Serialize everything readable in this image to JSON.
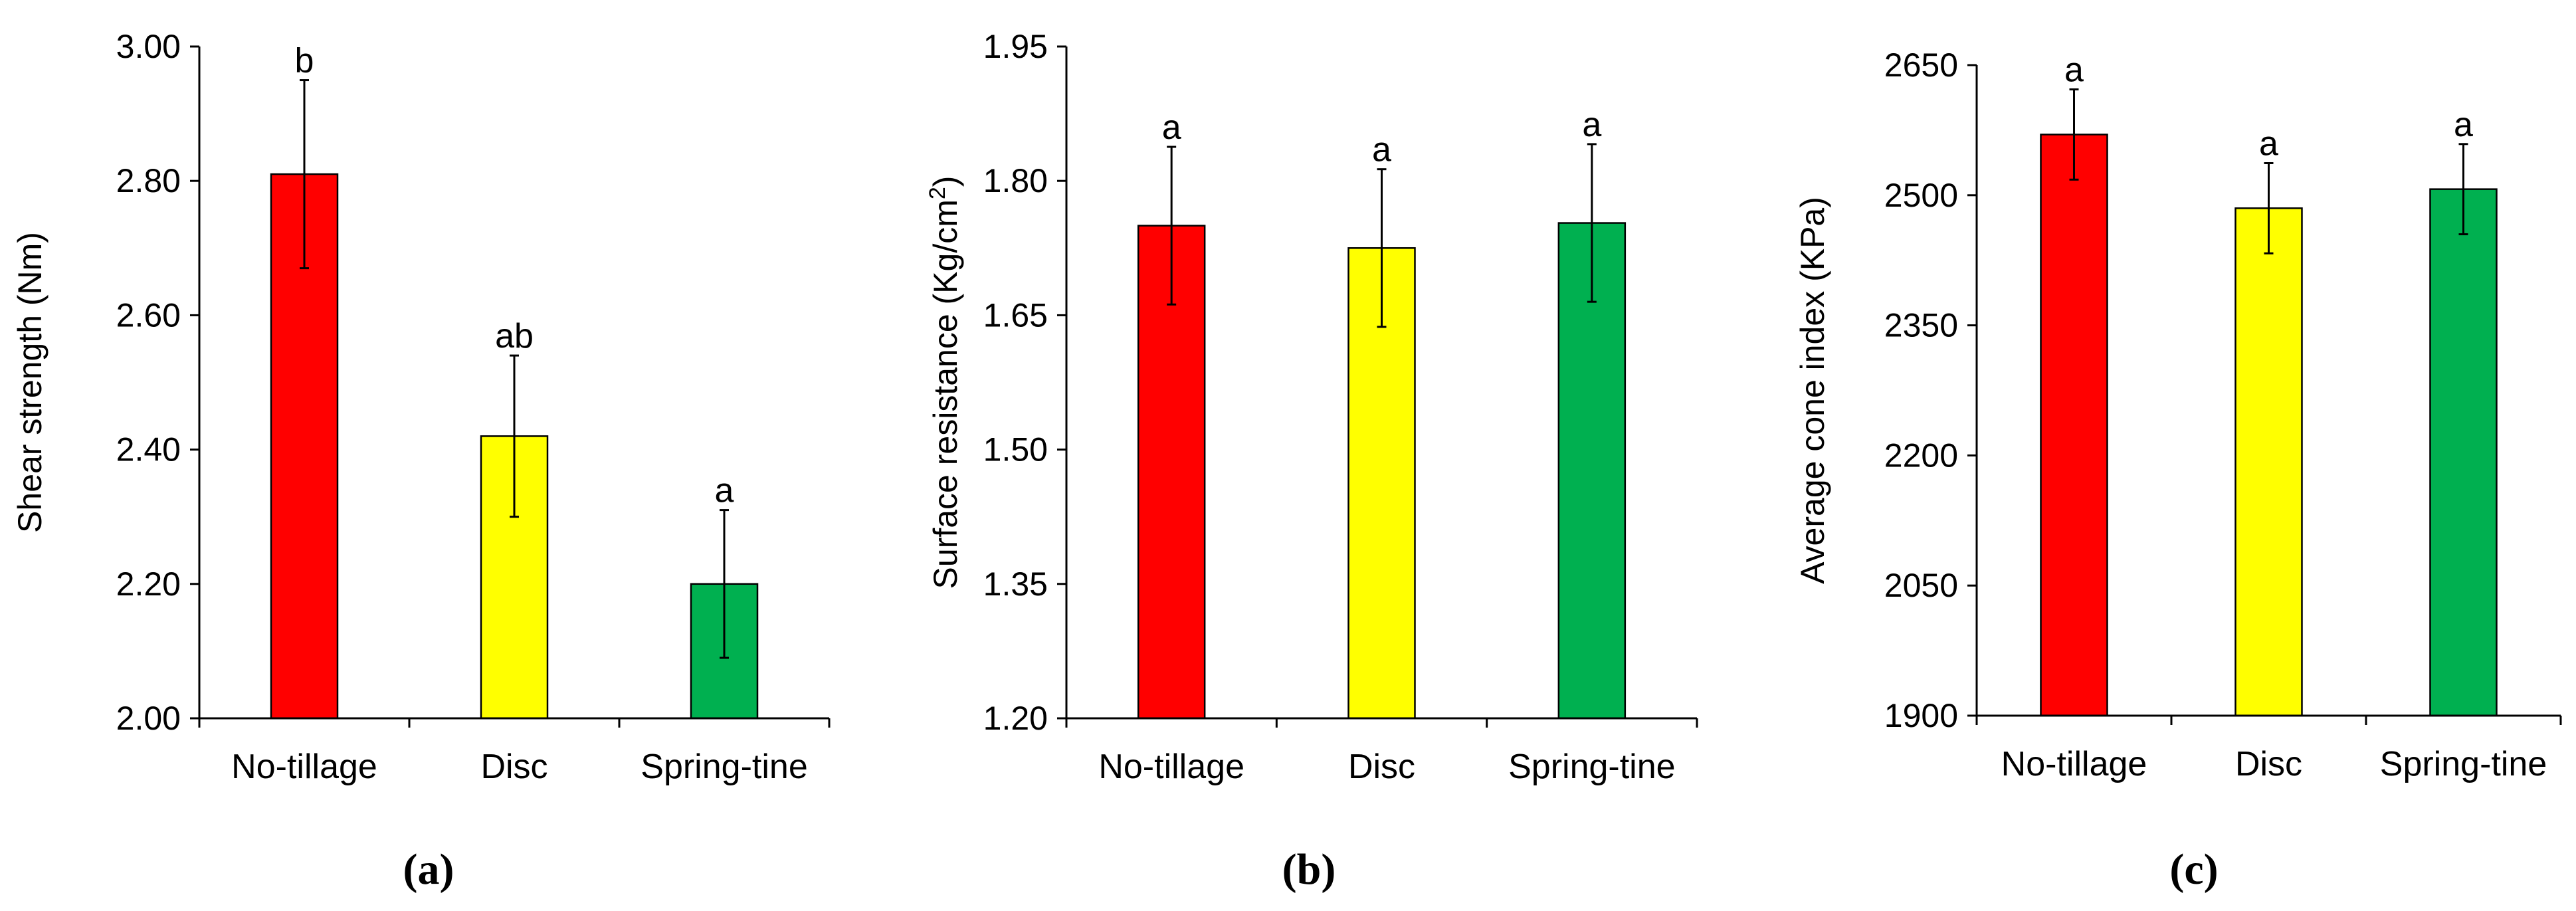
{
  "chart_data": [
    {
      "type": "bar",
      "panel": "(a)",
      "categories": [
        "No-tillage",
        "Disc",
        "Spring-tine"
      ],
      "values": [
        2.81,
        2.42,
        2.2
      ],
      "errors": [
        0.14,
        0.12,
        0.11
      ],
      "significance": [
        "b",
        "ab",
        "a"
      ],
      "colors": [
        "#ff0000",
        "#ffff00",
        "#00b050"
      ],
      "ylabel": "Shear strength (Nm)",
      "ylim": [
        2.0,
        3.0
      ],
      "yticks": [
        2.0,
        2.2,
        2.4,
        2.6,
        2.8,
        3.0
      ],
      "ytick_labels": [
        "2.00",
        "2.20",
        "2.40",
        "2.60",
        "2.80",
        "3.00"
      ],
      "grid": false
    },
    {
      "type": "bar",
      "panel": "(b)",
      "categories": [
        "No-tillage",
        "Disc",
        "Spring-tine"
      ],
      "values": [
        1.75,
        1.725,
        1.753
      ],
      "errors": [
        0.088,
        0.088,
        0.088
      ],
      "significance": [
        "a",
        "a",
        "a"
      ],
      "colors": [
        "#ff0000",
        "#ffff00",
        "#00b050"
      ],
      "ylabel": "Surface resistance (Kg/cm",
      "ylabel_sup": "2",
      "ylabel_end": ")",
      "ylim": [
        1.2,
        1.95
      ],
      "yticks": [
        1.2,
        1.35,
        1.5,
        1.65,
        1.8,
        1.95
      ],
      "ytick_labels": [
        "1.20",
        "1.35",
        "1.50",
        "1.65",
        "1.80",
        "1.95"
      ],
      "grid": false
    },
    {
      "type": "bar",
      "panel": "(c)",
      "categories": [
        "No-tillage",
        "Disc",
        "Spring-tine"
      ],
      "values": [
        2570,
        2485,
        2507
      ],
      "errors": [
        52,
        52,
        52
      ],
      "significance": [
        "a",
        "a",
        "a"
      ],
      "colors": [
        "#ff0000",
        "#ffff00",
        "#00b050"
      ],
      "ylabel": "Average cone index (KPa)",
      "ylim": [
        1900,
        2650
      ],
      "yticks": [
        1900,
        2050,
        2200,
        2350,
        2500,
        2650
      ],
      "ytick_labels": [
        "1900",
        "2050",
        "2200",
        "2350",
        "2500",
        "2650"
      ],
      "grid": false
    }
  ]
}
